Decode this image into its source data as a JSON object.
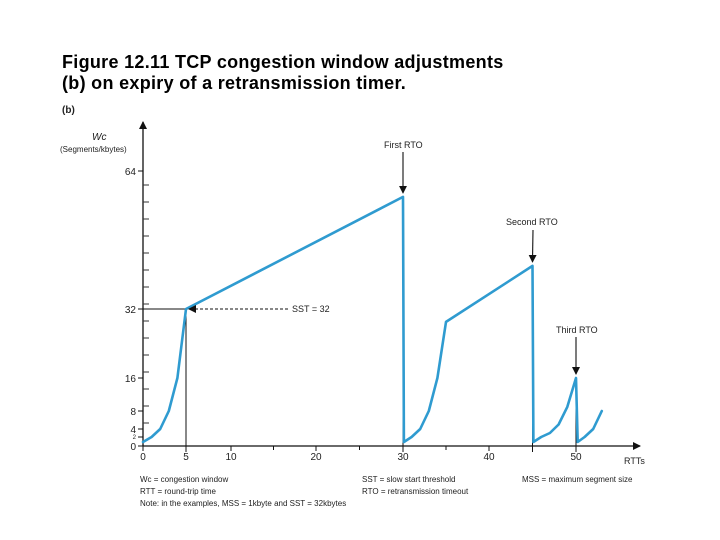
{
  "title": {
    "line1": "Figure 12.11 TCP congestion window adjustments",
    "line2": "(b) on expiry of a retransmission timer."
  },
  "chart_data": {
    "type": "line",
    "panel_label": "(b)",
    "ylabel_line1": "Wc",
    "ylabel_line2": "(Segments/kbytes)",
    "xlabel": "RTTs",
    "xlim": [
      0,
      55
    ],
    "y_ticks": [
      {
        "value": 0,
        "label": "0"
      },
      {
        "value": 2,
        "label": "2"
      },
      {
        "value": 4,
        "label": "4"
      },
      {
        "value": 8,
        "label": "8"
      },
      {
        "value": 16,
        "label": "16"
      },
      {
        "value": 32,
        "label": "32"
      },
      {
        "value": 64,
        "label": "64"
      }
    ],
    "x_ticks": [
      {
        "value": 0,
        "label": "0"
      },
      {
        "value": 5,
        "label": "5"
      },
      {
        "value": 10,
        "label": "10"
      },
      {
        "value": 20,
        "label": "20"
      },
      {
        "value": 30,
        "label": "30"
      },
      {
        "value": 40,
        "label": "40"
      },
      {
        "value": 50,
        "label": "50"
      }
    ],
    "x_minor_ticks": [
      15,
      25,
      35,
      45
    ],
    "y_scale_note": "piecewise linear axis: 0,2,4,8,16,32,64 evenly compressed as drawn",
    "series": [
      {
        "name": "Wc",
        "color": "#2f9bd0",
        "x": [
          0,
          1,
          2,
          3,
          4,
          5,
          30,
          30.1,
          31,
          32,
          33,
          34,
          35,
          45,
          45.1,
          46,
          47,
          48,
          49,
          50,
          50.2,
          51,
          52,
          53
        ],
        "y": [
          1,
          2,
          4,
          8,
          16,
          32,
          58,
          1,
          2,
          4,
          8,
          16,
          29,
          42,
          1,
          2,
          3,
          5,
          9,
          16,
          1,
          2,
          4,
          8
        ]
      }
    ],
    "annotations": [
      {
        "text": "First RTO",
        "x": 30,
        "y": 58
      },
      {
        "text": "Second RTO",
        "x": 45,
        "y": 42
      },
      {
        "text": "Third RTO",
        "x": 50,
        "y": 16
      },
      {
        "text": "SST = 32",
        "x": 5,
        "y": 32
      }
    ],
    "reference_lines_x": [
      5,
      30,
      45,
      50
    ],
    "legend_lines": [
      [
        "Wc = congestion window",
        "SST = slow start threshold",
        "MSS = maximum segment size"
      ],
      [
        "RTT = round-trip time",
        "RTO = retransmission timeout",
        ""
      ],
      [
        "Note: in the examples, MSS = 1kbyte and SST = 32kbytes",
        "",
        ""
      ]
    ]
  }
}
